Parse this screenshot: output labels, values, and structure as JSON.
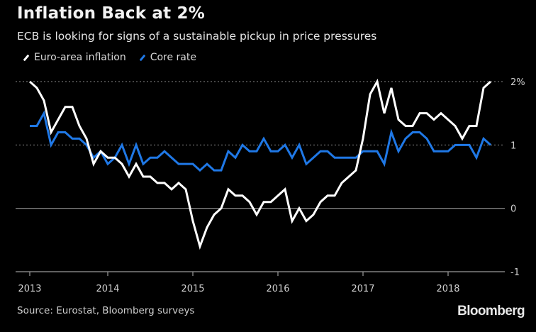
{
  "header": {
    "title": "Inflation Back at 2%",
    "subtitle": "ECB is looking for signs of a sustainable pickup in price pressures"
  },
  "footer": {
    "source": "Source: Eurostat, Bloomberg surveys",
    "logo": "Bloomberg"
  },
  "chart_data": {
    "type": "line",
    "title": "Inflation Back at 2%",
    "subtitle": "ECB is looking for signs of a sustainable pickup in price pressures",
    "xlabel": "",
    "ylabel": "",
    "x_start": "2013-02",
    "x_frequency": "monthly",
    "x_tick_labels": [
      "2013",
      "2014",
      "2015",
      "2016",
      "2017",
      "2018"
    ],
    "x_tick_month_index": [
      0,
      12,
      24,
      36,
      48,
      60
    ],
    "ylim": [
      -1,
      2
    ],
    "y_ticks": [
      2,
      1,
      0,
      -1
    ],
    "y_tick_labels": [
      "2%",
      "1",
      "0",
      "-1"
    ],
    "y_axis_side": "right",
    "gridlines": {
      "dotted": [
        2,
        1
      ],
      "solid": [
        0,
        -1
      ]
    },
    "legend_position": "top-left",
    "series": [
      {
        "name": "Euro-area inflation",
        "color": "#ffffff",
        "values": [
          2.0,
          1.9,
          1.7,
          1.2,
          1.4,
          1.6,
          1.6,
          1.3,
          1.1,
          0.7,
          0.9,
          0.8,
          0.8,
          0.7,
          0.5,
          0.7,
          0.5,
          0.5,
          0.4,
          0.4,
          0.3,
          0.4,
          0.3,
          -0.2,
          -0.6,
          -0.3,
          -0.1,
          0.0,
          0.3,
          0.2,
          0.2,
          0.1,
          -0.1,
          0.1,
          0.1,
          0.2,
          0.3,
          -0.2,
          0.0,
          -0.2,
          -0.1,
          0.1,
          0.2,
          0.2,
          0.4,
          0.5,
          0.6,
          1.1,
          1.8,
          2.0,
          1.5,
          1.9,
          1.4,
          1.3,
          1.3,
          1.5,
          1.5,
          1.4,
          1.5,
          1.4,
          1.3,
          1.1,
          1.3,
          1.3,
          1.9,
          2.0
        ]
      },
      {
        "name": "Core rate",
        "color": "#1f78e6",
        "values": [
          1.3,
          1.3,
          1.5,
          1.0,
          1.2,
          1.2,
          1.1,
          1.1,
          1.0,
          0.8,
          0.9,
          0.7,
          0.8,
          1.0,
          0.7,
          1.0,
          0.7,
          0.8,
          0.8,
          0.9,
          0.8,
          0.7,
          0.7,
          0.7,
          0.6,
          0.7,
          0.6,
          0.6,
          0.9,
          0.8,
          1.0,
          0.9,
          0.9,
          1.1,
          0.9,
          0.9,
          1.0,
          0.8,
          1.0,
          0.7,
          0.8,
          0.9,
          0.9,
          0.8,
          0.8,
          0.8,
          0.8,
          0.9,
          0.9,
          0.9,
          0.7,
          1.2,
          0.9,
          1.1,
          1.2,
          1.2,
          1.1,
          0.9,
          0.9,
          0.9,
          1.0,
          1.0,
          1.0,
          0.8,
          1.1,
          1.0
        ]
      }
    ]
  }
}
